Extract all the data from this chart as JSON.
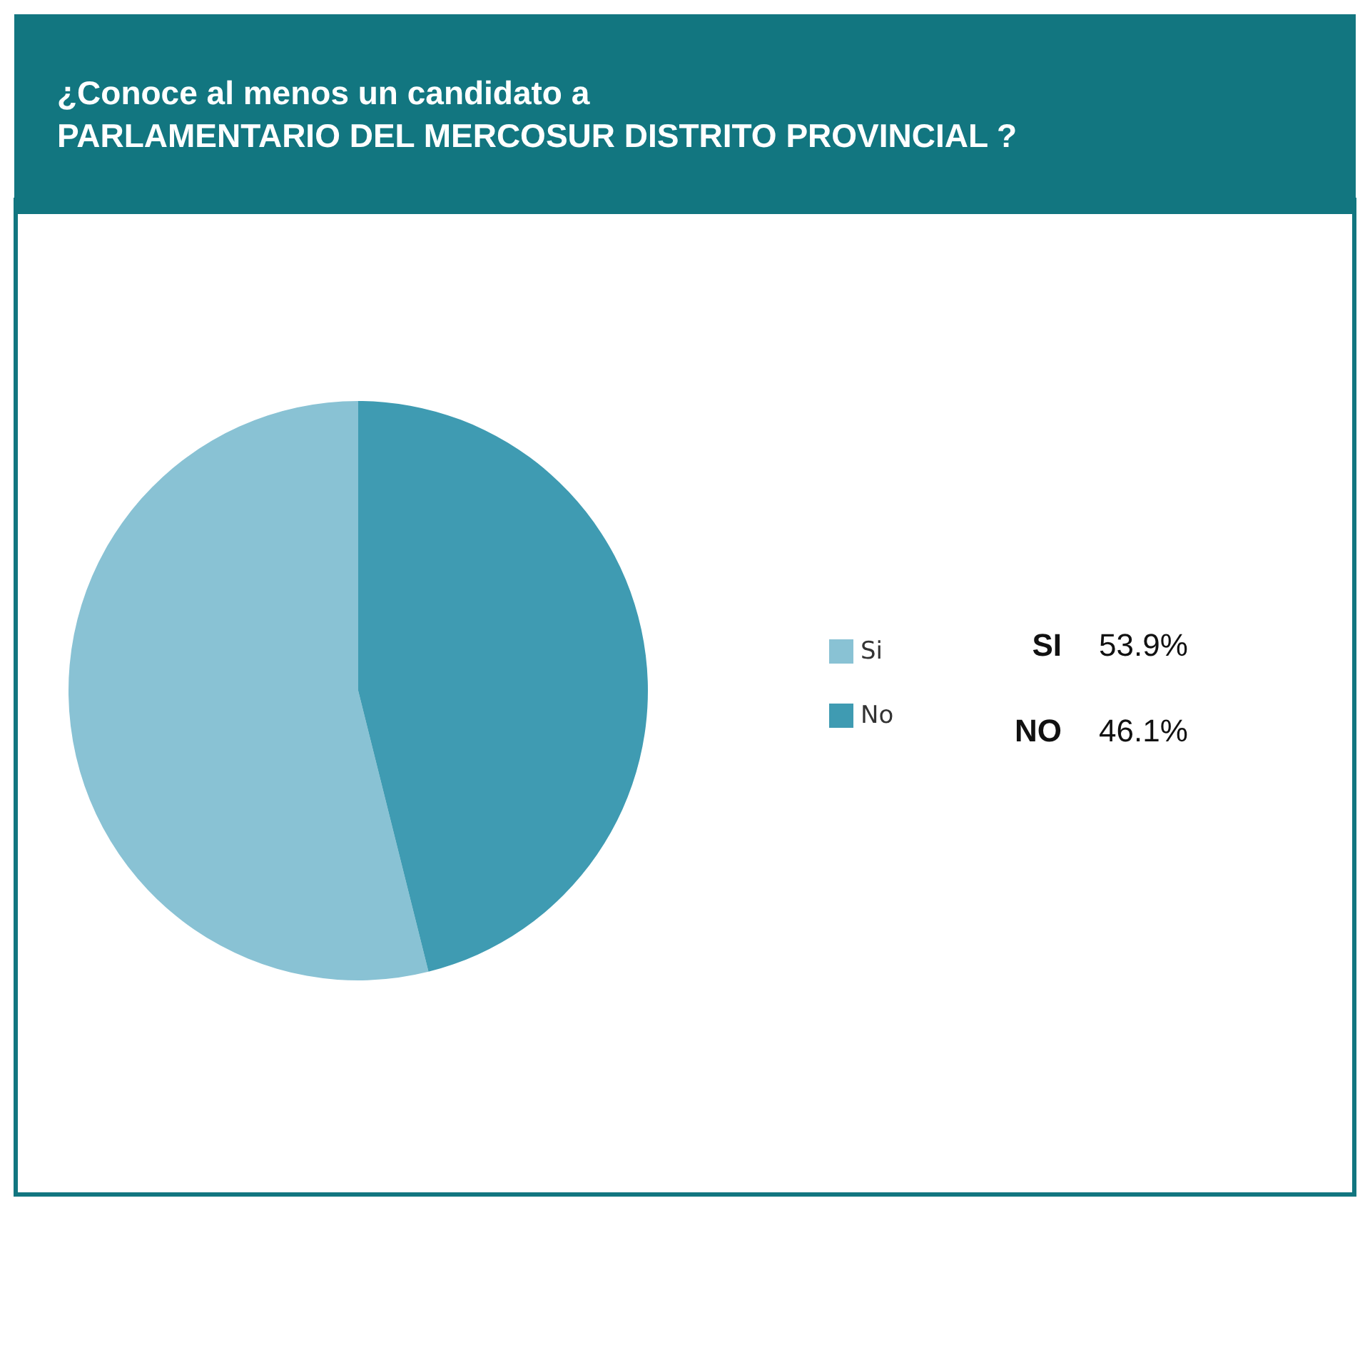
{
  "chart_data": {
    "type": "pie",
    "title": "¿Conoce al menos un candidato a\nPARLAMENTARIO DEL MERCOSUR DISTRITO PROVINCIAL ?",
    "categories": [
      "Si",
      "No"
    ],
    "values": [
      53.9,
      46.1
    ],
    "colors": [
      "#89c2d4",
      "#3f9bb2"
    ],
    "value_labels": [
      "53.9%",
      "46.1%"
    ],
    "annotations": [
      "SI",
      "NO"
    ],
    "legend": "right"
  }
}
